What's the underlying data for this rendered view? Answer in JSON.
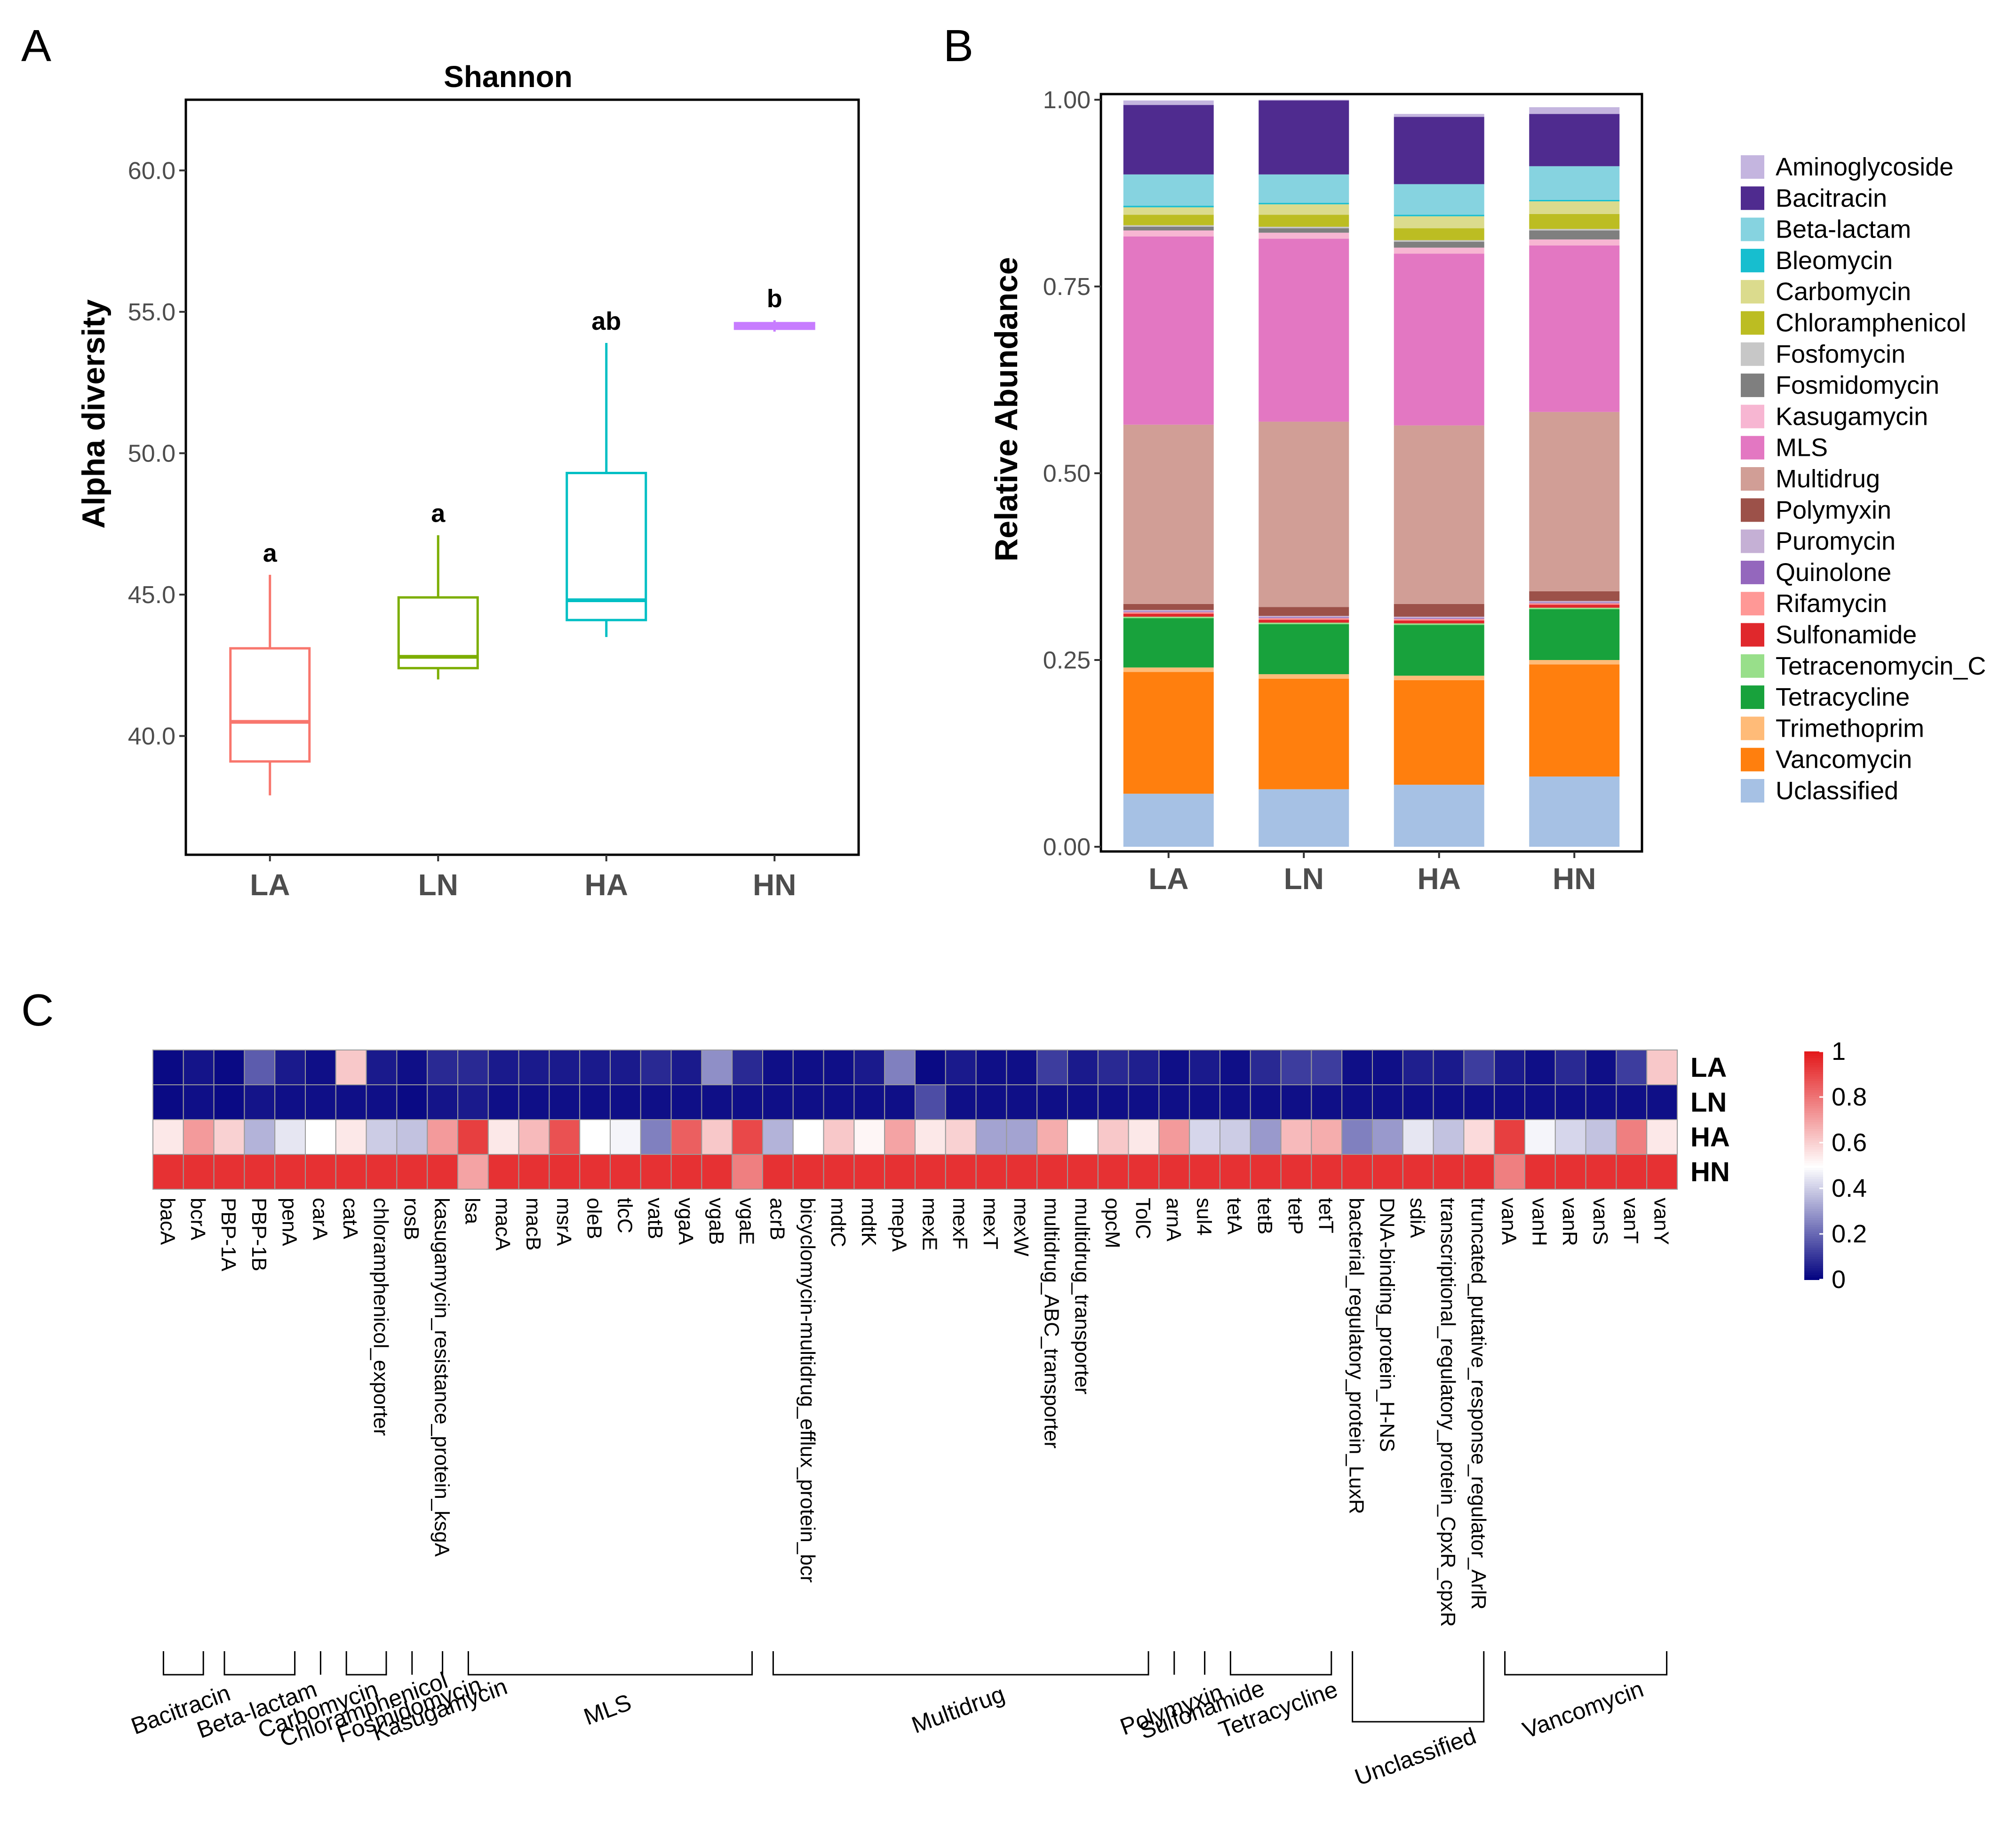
{
  "panels": {
    "a": "A",
    "b": "B",
    "c": "C"
  },
  "chart_data": [
    {
      "type": "box",
      "panel": "A",
      "title": "Shannon",
      "ylabel": "Alpha diversity",
      "xlabel": "",
      "ylim": [
        35.8,
        62.5
      ],
      "yticks": [
        40,
        45,
        50,
        55,
        60
      ],
      "ytick_labels": [
        "40.0",
        "45.0",
        "50.0",
        "55.0",
        "60.0"
      ],
      "categories": [
        "LA",
        "LN",
        "HA",
        "HN"
      ],
      "colors": [
        "#f8766d",
        "#7cae00",
        "#00bfc4",
        "#c77cff"
      ],
      "boxes": [
        {
          "group": "LA",
          "min": 37.9,
          "q1": 39.1,
          "median": 40.5,
          "q3": 43.1,
          "max": 45.7,
          "label": "a"
        },
        {
          "group": "LN",
          "min": 42.0,
          "q1": 42.4,
          "median": 42.8,
          "q3": 44.9,
          "max": 47.1,
          "label": "a"
        },
        {
          "group": "HA",
          "min": 43.5,
          "q1": 44.1,
          "median": 44.8,
          "q3": 49.3,
          "max": 53.9,
          "label": "ab"
        },
        {
          "group": "HN",
          "min": 54.3,
          "q1": 54.4,
          "median": 54.5,
          "q3": 54.6,
          "max": 54.7,
          "label": "b"
        }
      ]
    },
    {
      "type": "stacked-bar",
      "panel": "B",
      "ylabel": "Relative Abundance",
      "ylim": [
        0,
        1
      ],
      "yticks": [
        0,
        0.25,
        0.5,
        0.75,
        1
      ],
      "ytick_labels": [
        "0.00",
        "0.25",
        "0.50",
        "0.75",
        "1.00"
      ],
      "categories": [
        "LA",
        "LN",
        "HA",
        "HN"
      ],
      "series": [
        {
          "name": "Uclassified",
          "color": "#a6c1e4",
          "values": [
            0.071,
            0.077,
            0.083,
            0.094
          ]
        },
        {
          "name": "Vancomycin",
          "color": "#ff7f0e",
          "values": [
            0.163,
            0.148,
            0.14,
            0.15
          ]
        },
        {
          "name": "Trimethoprim",
          "color": "#ffbb78",
          "values": [
            0.006,
            0.006,
            0.006,
            0.006
          ]
        },
        {
          "name": "Tetracycline",
          "color": "#18a23c",
          "values": [
            0.066,
            0.067,
            0.068,
            0.068
          ]
        },
        {
          "name": "Tetracenomycin_C",
          "color": "#98df8a",
          "values": [
            0.002,
            0.002,
            0.002,
            0.002
          ]
        },
        {
          "name": "Sulfonamide",
          "color": "#e0282c",
          "values": [
            0.004,
            0.004,
            0.004,
            0.004
          ]
        },
        {
          "name": "Rifamycin",
          "color": "#ff9896",
          "values": [
            0.002,
            0.002,
            0.002,
            0.002
          ]
        },
        {
          "name": "Quinolone",
          "color": "#9467bd",
          "values": [
            0.001,
            0.001,
            0.001,
            0.001
          ]
        },
        {
          "name": "Puromycin",
          "color": "#c5b0d5",
          "values": [
            0.002,
            0.002,
            0.002,
            0.002
          ]
        },
        {
          "name": "Polymyxin",
          "color": "#9c5149",
          "values": [
            0.008,
            0.012,
            0.017,
            0.013
          ]
        },
        {
          "name": "Multidrug",
          "color": "#d19e96",
          "values": [
            0.24,
            0.248,
            0.239,
            0.24
          ]
        },
        {
          "name": "MLS",
          "color": "#e377c2",
          "values": [
            0.252,
            0.245,
            0.23,
            0.223
          ]
        },
        {
          "name": "Kasugamycin",
          "color": "#f7b6d2",
          "values": [
            0.008,
            0.008,
            0.008,
            0.008
          ]
        },
        {
          "name": "Fosmidomycin",
          "color": "#7f7f7f",
          "values": [
            0.005,
            0.006,
            0.008,
            0.012
          ]
        },
        {
          "name": "Fosfomycin",
          "color": "#c7c7c7",
          "values": [
            0.002,
            0.002,
            0.002,
            0.002
          ]
        },
        {
          "name": "Chloramphenicol",
          "color": "#bcbd22",
          "values": [
            0.014,
            0.016,
            0.016,
            0.02
          ]
        },
        {
          "name": "Carbomycin",
          "color": "#dbdb8d",
          "values": [
            0.01,
            0.014,
            0.016,
            0.017
          ]
        },
        {
          "name": "Bleomycin",
          "color": "#17becf",
          "values": [
            0.002,
            0.002,
            0.002,
            0.002
          ]
        },
        {
          "name": "Beta-lactam",
          "color": "#86d3e0",
          "values": [
            0.042,
            0.038,
            0.041,
            0.045
          ]
        },
        {
          "name": "Bacitracin",
          "color": "#4f2b8f",
          "values": [
            0.093,
            0.099,
            0.09,
            0.07
          ]
        },
        {
          "name": "Aminoglycoside",
          "color": "#c4b5df",
          "values": [
            0.006,
            0.001,
            0.004,
            0.009
          ]
        }
      ],
      "legend_order": [
        "Aminoglycoside",
        "Bacitracin",
        "Beta-lactam",
        "Bleomycin",
        "Carbomycin",
        "Chloramphenicol",
        "Fosfomycin",
        "Fosmidomycin",
        "Kasugamycin",
        "MLS",
        "Multidrug",
        "Polymyxin",
        "Puromycin",
        "Quinolone",
        "Rifamycin",
        "Sulfonamide",
        "Tetracenomycin_C",
        "Tetracycline",
        "Trimethoprim",
        "Vancomycin",
        "Uclassified"
      ]
    },
    {
      "type": "heatmap",
      "panel": "C",
      "rows": [
        "LA",
        "LN",
        "HA",
        "HN"
      ],
      "columns": [
        "bacA",
        "bcrA",
        "PBP-1A",
        "PBP-1B",
        "penA",
        "carA",
        "catA",
        "chloramphenicol_exporter",
        "rosB",
        "kasugamycin_resistance_protein_ksgA",
        "lsa",
        "macA",
        "macB",
        "msrA",
        "oleB",
        "tlcC",
        "vatB",
        "vgaA",
        "vgaB",
        "vgaE",
        "acrB",
        "bicyclomycin-multidrug_efflux_protein_bcr",
        "mdtC",
        "mdtK",
        "mepA",
        "mexE",
        "mexF",
        "mexT",
        "mexW",
        "multidrug_ABC_transporter",
        "multidrug_transporter",
        "opcM",
        "TolC",
        "arnA",
        "sul4",
        "tetA",
        "tetB",
        "tetP",
        "tetT",
        "bacterial_regulatory_protein_LuxR",
        "DNA-binding_protein_H-NS",
        "sdiA",
        "transcriptional_regulatory_protein_CpxR_cpxR",
        "truncated_putative_response_regulator_ArlR",
        "vanA",
        "vanH",
        "vanR",
        "vanS",
        "vanT",
        "vanY"
      ],
      "values": [
        [
          0.02,
          0.04,
          0.02,
          0.18,
          0.05,
          0.03,
          0.62,
          0.05,
          0.03,
          0.08,
          0.08,
          0.05,
          0.05,
          0.05,
          0.05,
          0.05,
          0.08,
          0.05,
          0.28,
          0.08,
          0.03,
          0.03,
          0.03,
          0.05,
          0.25,
          0.02,
          0.05,
          0.03,
          0.03,
          0.12,
          0.05,
          0.08,
          0.06,
          0.03,
          0.05,
          0.03,
          0.08,
          0.12,
          0.12,
          0.03,
          0.03,
          0.06,
          0.05,
          0.12,
          0.05,
          0.03,
          0.08,
          0.03,
          0.12,
          0.62
        ],
        [
          0.02,
          0.03,
          0.02,
          0.04,
          0.03,
          0.03,
          0.03,
          0.03,
          0.02,
          0.04,
          0.05,
          0.03,
          0.03,
          0.03,
          0.03,
          0.03,
          0.03,
          0.03,
          0.03,
          0.03,
          0.03,
          0.03,
          0.03,
          0.03,
          0.03,
          0.15,
          0.03,
          0.03,
          0.03,
          0.03,
          0.03,
          0.03,
          0.03,
          0.03,
          0.03,
          0.03,
          0.03,
          0.03,
          0.03,
          0.03,
          0.03,
          0.03,
          0.03,
          0.03,
          0.03,
          0.03,
          0.03,
          0.03,
          0.03,
          0.03
        ],
        [
          0.55,
          0.72,
          0.6,
          0.35,
          0.45,
          0.5,
          0.55,
          0.4,
          0.38,
          0.72,
          0.92,
          0.55,
          0.65,
          0.88,
          0.5,
          0.48,
          0.25,
          0.85,
          0.62,
          0.9,
          0.35,
          0.5,
          0.62,
          0.52,
          0.7,
          0.55,
          0.6,
          0.32,
          0.32,
          0.68,
          0.5,
          0.62,
          0.55,
          0.72,
          0.42,
          0.4,
          0.3,
          0.65,
          0.68,
          0.25,
          0.3,
          0.45,
          0.38,
          0.58,
          0.92,
          0.48,
          0.42,
          0.38,
          0.78,
          0.55
        ],
        [
          0.95,
          0.95,
          0.95,
          0.95,
          0.95,
          0.95,
          0.95,
          0.95,
          0.95,
          0.95,
          0.7,
          0.95,
          0.95,
          0.95,
          0.95,
          0.95,
          0.95,
          0.95,
          0.95,
          0.78,
          0.95,
          0.95,
          0.95,
          0.95,
          0.95,
          0.95,
          0.95,
          0.95,
          0.95,
          0.95,
          0.95,
          0.95,
          0.95,
          0.95,
          0.95,
          0.95,
          0.95,
          0.95,
          0.95,
          0.95,
          0.95,
          0.95,
          0.95,
          0.95,
          0.78,
          0.95,
          0.95,
          0.95,
          0.95,
          0.95
        ]
      ],
      "colorbar": {
        "min": 0,
        "max": 1,
        "low_color": "#00007f",
        "mid_color": "#ffffff",
        "high_color": "#e31a1c",
        "ticks": [
          0,
          0.2,
          0.4,
          0.6,
          0.8,
          1
        ],
        "tick_labels": [
          "0",
          "0.2",
          "0.4",
          "0.6",
          "0.8",
          "1"
        ]
      },
      "groups": [
        {
          "name": "Bacitracin",
          "from": 0,
          "to": 1
        },
        {
          "name": "Beta-lactam",
          "from": 2,
          "to": 4
        },
        {
          "name": "Carbomycin",
          "from": 5,
          "to": 5
        },
        {
          "name": "Chloramphenicol",
          "from": 6,
          "to": 7
        },
        {
          "name": "Fosmidomycin",
          "from": 8,
          "to": 8
        },
        {
          "name": "Kasugamycin",
          "from": 9,
          "to": 9
        },
        {
          "name": "MLS",
          "from": 10,
          "to": 19
        },
        {
          "name": "Multidrug",
          "from": 20,
          "to": 32
        },
        {
          "name": "Polymyxin",
          "from": 33,
          "to": 33
        },
        {
          "name": "Sulfonamide",
          "from": 34,
          "to": 34
        },
        {
          "name": "Tetracycline",
          "from": 35,
          "to": 38
        },
        {
          "name": "Unclassified",
          "from": 39,
          "to": 43
        },
        {
          "name": "Vancomycin",
          "from": 44,
          "to": 49
        }
      ]
    }
  ]
}
